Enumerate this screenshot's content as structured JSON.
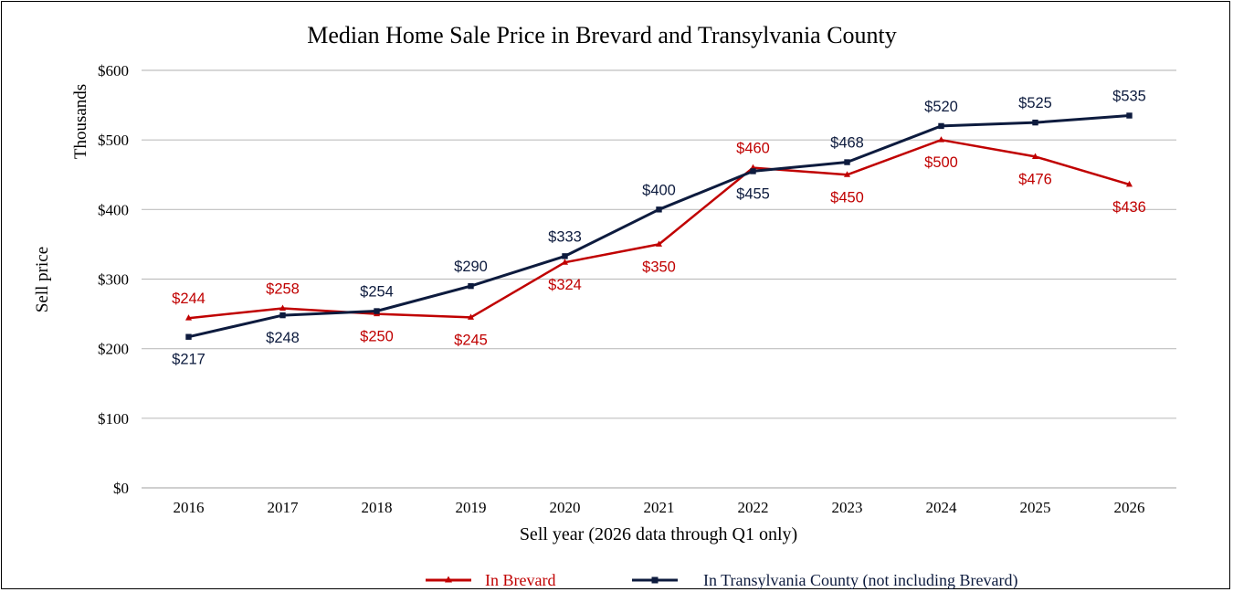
{
  "chart_data": {
    "type": "line",
    "title": "Median Home Sale Price in Brevard and Transylvania County",
    "xlabel": "Sell year (2026 data through Q1 only)",
    "ylabel": "Sell price",
    "ylabel_units": "Thousands",
    "categories": [
      "2016",
      "2017",
      "2018",
      "2019",
      "2020",
      "2021",
      "2022",
      "2023",
      "2024",
      "2025",
      "2026"
    ],
    "ylim": [
      0,
      600
    ],
    "y_ticks": [
      0,
      100,
      200,
      300,
      400,
      500,
      600
    ],
    "y_tick_labels": [
      "$0",
      "$100",
      "$200",
      "$300",
      "$400",
      "$500",
      "$600"
    ],
    "grid": true,
    "legend_position": "bottom",
    "series": [
      {
        "name": "In Brevard",
        "color": "#C00000",
        "marker": "triangle",
        "values": [
          244,
          258,
          250,
          245,
          324,
          350,
          460,
          450,
          500,
          476,
          436
        ],
        "data_labels": [
          "$244",
          "$258",
          "$250",
          "$245",
          "$324",
          "$350",
          "$460",
          "$450",
          "$500",
          "$476",
          "$436"
        ]
      },
      {
        "name": "In Transylvania County (not including Brevard)",
        "color": "#0D1B3E",
        "marker": "square",
        "values": [
          217,
          248,
          254,
          290,
          333,
          400,
          455,
          468,
          520,
          525,
          535
        ],
        "data_labels": [
          "$217",
          "$248",
          "$254",
          "$290",
          "$333",
          "$400",
          "$455",
          "$468",
          "$520",
          "$525",
          "$535"
        ]
      }
    ]
  }
}
